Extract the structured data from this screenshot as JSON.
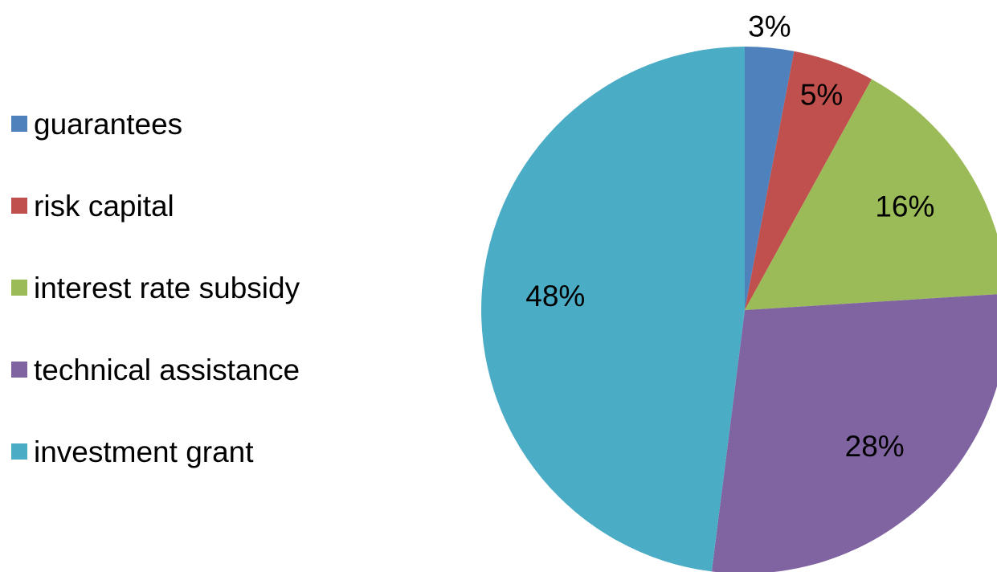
{
  "chart_data": {
    "type": "pie",
    "title": "",
    "categories": [
      "guarantees",
      "risk capital",
      "interest rate subsidy",
      "technical assistance",
      "investment grant"
    ],
    "values": [
      3,
      5,
      16,
      28,
      48
    ],
    "value_labels": [
      "3%",
      "5%",
      "16%",
      "28%",
      "48%"
    ],
    "colors": [
      "#4f81bd",
      "#c0504d",
      "#9bbb59",
      "#8064a2",
      "#4bacc6"
    ],
    "start_angle": "12 o'clock",
    "direction": "clockwise",
    "legend": "left"
  }
}
